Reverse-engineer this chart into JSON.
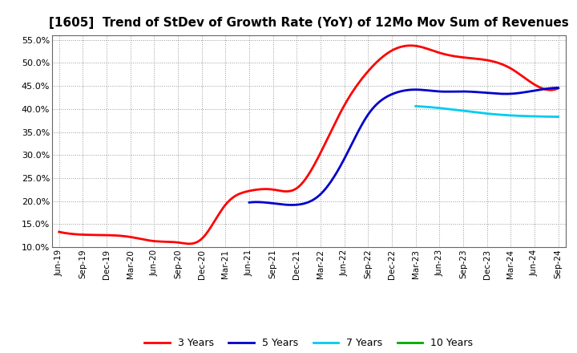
{
  "title": "[1605]  Trend of StDev of Growth Rate (YoY) of 12Mo Mov Sum of Revenues",
  "ylim": [
    0.1,
    0.56
  ],
  "yticks": [
    0.1,
    0.15,
    0.2,
    0.25,
    0.3,
    0.35,
    0.4,
    0.45,
    0.5,
    0.55
  ],
  "background_color": "#ffffff",
  "plot_bg_color": "#ffffff",
  "grid_color": "#999999",
  "series": {
    "3 Years": {
      "color": "#ff0000",
      "data": [
        [
          "Jun-19",
          0.133
        ],
        [
          "Sep-19",
          0.127
        ],
        [
          "Dec-19",
          0.126
        ],
        [
          "Mar-20",
          0.122
        ],
        [
          "Jun-20",
          0.113
        ],
        [
          "Sep-20",
          0.11
        ],
        [
          "Dec-20",
          0.118
        ],
        [
          "Mar-21",
          0.192
        ],
        [
          "Jun-21",
          0.222
        ],
        [
          "Sep-21",
          0.225
        ],
        [
          "Dec-21",
          0.228
        ],
        [
          "Mar-22",
          0.305
        ],
        [
          "Jun-22",
          0.408
        ],
        [
          "Sep-22",
          0.482
        ],
        [
          "Dec-22",
          0.527
        ],
        [
          "Mar-23",
          0.537
        ],
        [
          "Jun-23",
          0.522
        ],
        [
          "Sep-23",
          0.512
        ],
        [
          "Dec-23",
          0.506
        ],
        [
          "Mar-24",
          0.488
        ],
        [
          "Jun-24",
          0.453
        ],
        [
          "Sep-24",
          0.445
        ]
      ]
    },
    "5 Years": {
      "color": "#0000cc",
      "data": [
        [
          "Jun-19",
          null
        ],
        [
          "Sep-19",
          null
        ],
        [
          "Dec-19",
          null
        ],
        [
          "Mar-20",
          null
        ],
        [
          "Jun-20",
          null
        ],
        [
          "Sep-20",
          null
        ],
        [
          "Dec-20",
          null
        ],
        [
          "Mar-21",
          null
        ],
        [
          "Jun-21",
          0.197
        ],
        [
          "Sep-21",
          0.195
        ],
        [
          "Dec-21",
          0.192
        ],
        [
          "Mar-22",
          0.215
        ],
        [
          "Jun-22",
          0.292
        ],
        [
          "Sep-22",
          0.388
        ],
        [
          "Dec-22",
          0.432
        ],
        [
          "Mar-23",
          0.442
        ],
        [
          "Jun-23",
          0.438
        ],
        [
          "Sep-23",
          0.438
        ],
        [
          "Dec-23",
          0.435
        ],
        [
          "Mar-24",
          0.433
        ],
        [
          "Jun-24",
          0.44
        ],
        [
          "Sep-24",
          0.446
        ]
      ]
    },
    "7 Years": {
      "color": "#00ccee",
      "data": [
        [
          "Jun-19",
          null
        ],
        [
          "Sep-19",
          null
        ],
        [
          "Dec-19",
          null
        ],
        [
          "Mar-20",
          null
        ],
        [
          "Jun-20",
          null
        ],
        [
          "Sep-20",
          null
        ],
        [
          "Dec-20",
          null
        ],
        [
          "Mar-21",
          null
        ],
        [
          "Jun-21",
          null
        ],
        [
          "Sep-21",
          null
        ],
        [
          "Dec-21",
          null
        ],
        [
          "Mar-22",
          null
        ],
        [
          "Jun-22",
          null
        ],
        [
          "Sep-22",
          null
        ],
        [
          "Dec-22",
          null
        ],
        [
          "Mar-23",
          0.406
        ],
        [
          "Jun-23",
          0.402
        ],
        [
          "Sep-23",
          0.396
        ],
        [
          "Dec-23",
          0.39
        ],
        [
          "Mar-24",
          0.386
        ],
        [
          "Jun-24",
          0.384
        ],
        [
          "Sep-24",
          0.383
        ]
      ]
    },
    "10 Years": {
      "color": "#00aa00",
      "data": [
        [
          "Jun-19",
          null
        ],
        [
          "Sep-19",
          null
        ],
        [
          "Dec-19",
          null
        ],
        [
          "Mar-20",
          null
        ],
        [
          "Jun-20",
          null
        ],
        [
          "Sep-20",
          null
        ],
        [
          "Dec-20",
          null
        ],
        [
          "Mar-21",
          null
        ],
        [
          "Jun-21",
          null
        ],
        [
          "Sep-21",
          null
        ],
        [
          "Dec-21",
          null
        ],
        [
          "Mar-22",
          null
        ],
        [
          "Jun-22",
          null
        ],
        [
          "Sep-22",
          null
        ],
        [
          "Dec-22",
          null
        ],
        [
          "Mar-23",
          null
        ],
        [
          "Jun-23",
          null
        ],
        [
          "Sep-23",
          null
        ],
        [
          "Dec-23",
          null
        ],
        [
          "Mar-24",
          null
        ],
        [
          "Jun-24",
          null
        ],
        [
          "Sep-24",
          null
        ]
      ]
    }
  },
  "xtick_labels": [
    "Jun-19",
    "Sep-19",
    "Dec-19",
    "Mar-20",
    "Jun-20",
    "Sep-20",
    "Dec-20",
    "Mar-21",
    "Jun-21",
    "Sep-21",
    "Dec-21",
    "Mar-22",
    "Jun-22",
    "Sep-22",
    "Dec-22",
    "Mar-23",
    "Jun-23",
    "Sep-23",
    "Dec-23",
    "Mar-24",
    "Jun-24",
    "Sep-24"
  ],
  "legend_labels": [
    "3 Years",
    "5 Years",
    "7 Years",
    "10 Years"
  ],
  "legend_colors": [
    "#ff0000",
    "#0000cc",
    "#00ccee",
    "#00aa00"
  ]
}
